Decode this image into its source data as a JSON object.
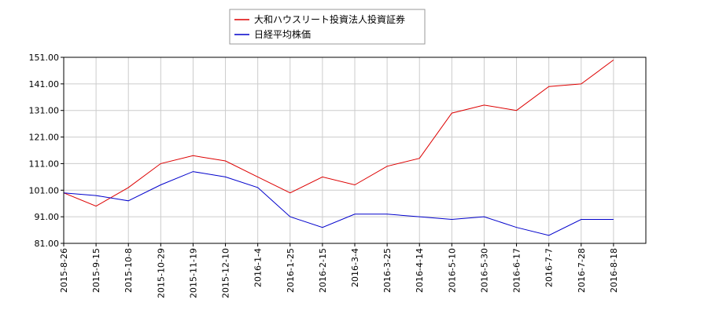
{
  "chart_data": {
    "type": "line",
    "title": "",
    "xlabel": "",
    "ylabel": "",
    "ylim": [
      81.0,
      151.0
    ],
    "yticks": [
      "81.00",
      "91.00",
      "101.00",
      "111.00",
      "121.00",
      "131.00",
      "141.00",
      "151.00"
    ],
    "xticks": [
      "2015-8-26",
      "2015-9-15",
      "2015-10-8",
      "2015-10-29",
      "2015-11-19",
      "2015-12-10",
      "2016-1-4",
      "2016-1-25",
      "2016-2-15",
      "2016-3-4",
      "2016-3-25",
      "2016-4-14",
      "2016-5-10",
      "2016-5-30",
      "2016-6-17",
      "2016-7-7",
      "2016-7-28",
      "2016-8-18"
    ],
    "grid": true,
    "legend_position": "top",
    "x": [
      "2015-8-26",
      "2015-9-15",
      "2015-10-8",
      "2015-10-29",
      "2015-11-19",
      "2015-12-10",
      "2016-1-4",
      "2016-1-25",
      "2016-2-15",
      "2016-3-4",
      "2016-3-25",
      "2016-4-14",
      "2016-5-10",
      "2016-5-30",
      "2016-6-17",
      "2016-7-7",
      "2016-7-28",
      "2016-8-18"
    ],
    "series": [
      {
        "name": "大和ハウスリート投資法人投資証券",
        "color": "#dd0000",
        "values": [
          100.0,
          95.0,
          102.0,
          111.0,
          114.0,
          112.0,
          106.0,
          100.0,
          106.0,
          103.0,
          110.0,
          113.0,
          130.0,
          133.0,
          131.0,
          140.0,
          141.0,
          150.0
        ]
      },
      {
        "name": "日経平均株価",
        "color": "#0000cc",
        "values": [
          100.0,
          99.0,
          97.0,
          103.0,
          108.0,
          106.0,
          102.0,
          91.0,
          87.0,
          92.0,
          92.0,
          91.0,
          90.0,
          91.0,
          87.0,
          84.0,
          90.0,
          90.0
        ]
      }
    ]
  }
}
